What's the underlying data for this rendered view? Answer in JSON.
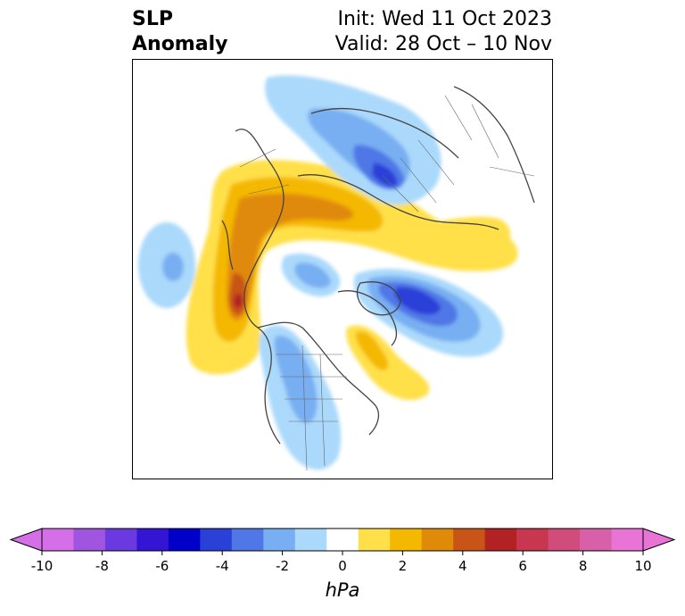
{
  "title": {
    "variable": "SLP",
    "subtitle": "Anomaly",
    "init": "Init: Wed 11 Oct 2023",
    "valid": "Valid: 28 Oct – 10 Nov"
  },
  "colorbar": {
    "unit": "hPa",
    "ticks": [
      "-10",
      "-8",
      "-6",
      "-4",
      "-2",
      "0",
      "2",
      "4",
      "6",
      "8",
      "10"
    ],
    "colors": [
      "#d56fe8",
      "#9f55e0",
      "#6a3ae0",
      "#3415d4",
      "#0000c8",
      "#2a41d8",
      "#4f77e6",
      "#78aff2",
      "#aad9fb",
      "#ffffff",
      "#ffe04a",
      "#f4b800",
      "#e08a0a",
      "#c85418",
      "#b22222",
      "#c83650",
      "#d04c7a",
      "#d860a8",
      "#e874d6"
    ],
    "min_color": "#d56fe8",
    "max_color": "#e874d6"
  },
  "map": {
    "projection": "north-polar-stereographic",
    "field": "sea-level-pressure-anomaly"
  }
}
